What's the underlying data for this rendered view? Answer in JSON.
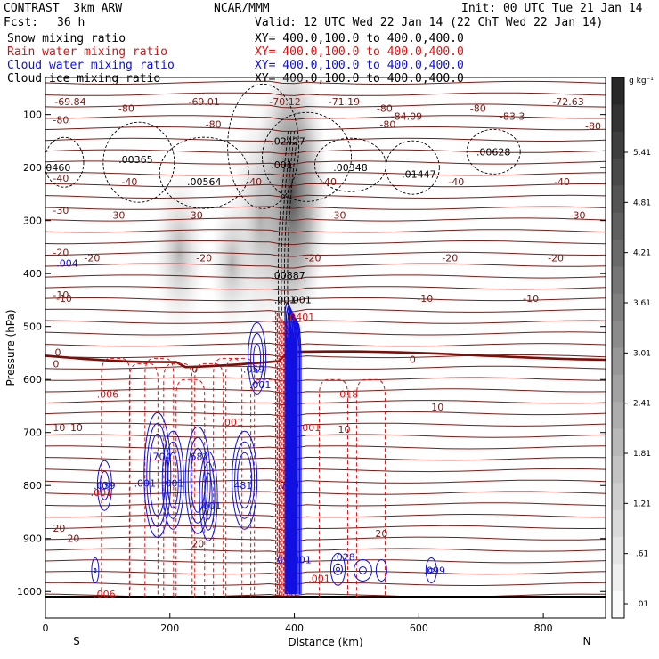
{
  "header": {
    "model": "CONTRAST  3km ARW",
    "center": "NCAR/MMM",
    "init": "Init: 00 UTC Tue 21 Jan 14",
    "fcst_label": "Fcst:",
    "fcst_value": "36 h",
    "valid": "Valid: 12 UTC Wed 22 Jan 14 (22 ChT Wed 22 Jan 14)"
  },
  "fields": [
    {
      "name": "Snow mixing ratio",
      "xy": "XY= 400.0,100.0 to 400.0,400.0",
      "color": "#000000"
    },
    {
      "name": "Rain water mixing ratio",
      "xy": "XY= 400.0,100.0 to 400.0,400.0",
      "color": "#e01010"
    },
    {
      "name": "Cloud water mixing ratio",
      "xy": "XY= 400.0,100.0 to 400.0,400.0",
      "color": "#1010e0"
    },
    {
      "name": "Cloud ice mixing ratio",
      "xy": "XY= 400.0,100.0 to 400.0,400.0",
      "color": "#000000"
    }
  ],
  "chart_data": {
    "type": "cross-section contour",
    "xlabel": "Distance (km)",
    "ylabel": "Pressure (hPa)",
    "xlim": [
      0,
      900
    ],
    "ylim": [
      1050,
      30
    ],
    "x_ticks": [
      "0",
      "200",
      "400",
      "600",
      "800"
    ],
    "y_ticks": [
      "100",
      "200",
      "300",
      "400",
      "500",
      "600",
      "700",
      "800",
      "900",
      "1000"
    ],
    "endpoints": {
      "left": "S",
      "right": "N"
    },
    "colorbar": {
      "unit": "g kg⁻¹",
      "ticks": [
        "5.41",
        "4.81",
        "4.21",
        "3.61",
        "3.01",
        "2.41",
        "1.81",
        "1.21",
        ".61",
        ".01"
      ]
    },
    "temperature_isotherms": [
      {
        "label": "-80",
        "p": 110
      },
      {
        "label": "-40",
        "p": 220
      },
      {
        "label": "-30",
        "p": 280
      },
      {
        "label": "-20",
        "p": 360
      },
      {
        "label": "-10",
        "p": 440
      },
      {
        "label": "0",
        "p": 570
      },
      {
        "label": "10",
        "p": 690
      },
      {
        "label": "20",
        "p": 880
      }
    ],
    "extremes_dark": [
      {
        "text": "-69.84",
        "x": 40,
        "p": 75
      },
      {
        "text": "-69.01",
        "x": 255,
        "p": 75
      },
      {
        "text": "-70.12",
        "x": 385,
        "p": 75
      },
      {
        "text": "-71.19",
        "x": 480,
        "p": 75
      },
      {
        "text": "-72.63",
        "x": 840,
        "p": 75
      },
      {
        "text": "-84.09",
        "x": 580,
        "p": 103
      },
      {
        "text": "-83.3",
        "x": 750,
        "p": 103
      },
      {
        "text": "-80",
        "x": 130,
        "p": 88
      },
      {
        "text": "-80",
        "x": 545,
        "p": 88
      },
      {
        "text": "-80",
        "x": 695,
        "p": 88
      },
      {
        "text": "-80",
        "x": 270,
        "p": 118
      },
      {
        "text": "-80",
        "x": 550,
        "p": 118
      },
      {
        "text": "-80",
        "x": 880,
        "p": 122
      },
      {
        "text": "-40",
        "x": 135,
        "p": 227
      },
      {
        "text": "-40",
        "x": 335,
        "p": 227
      },
      {
        "text": "-40",
        "x": 455,
        "p": 227
      },
      {
        "text": "-40",
        "x": 660,
        "p": 227
      },
      {
        "text": "-40",
        "x": 830,
        "p": 227
      },
      {
        "text": "-30",
        "x": 115,
        "p": 290
      },
      {
        "text": "-30",
        "x": 240,
        "p": 290
      },
      {
        "text": "-30",
        "x": 470,
        "p": 290
      },
      {
        "text": "-30",
        "x": 855,
        "p": 290
      },
      {
        "text": "-20",
        "x": 75,
        "p": 370
      },
      {
        "text": "-20",
        "x": 255,
        "p": 370
      },
      {
        "text": "-20",
        "x": 430,
        "p": 370
      },
      {
        "text": "-20",
        "x": 650,
        "p": 370
      },
      {
        "text": "-20",
        "x": 820,
        "p": 370
      },
      {
        "text": "-10",
        "x": 30,
        "p": 447
      },
      {
        "text": "-10",
        "x": 610,
        "p": 447
      },
      {
        "text": "-10",
        "x": 780,
        "p": 447
      },
      {
        "text": "0",
        "x": 20,
        "p": 548
      },
      {
        "text": "0",
        "x": 240,
        "p": 580
      },
      {
        "text": "0",
        "x": 590,
        "p": 562
      },
      {
        "text": "10",
        "x": 50,
        "p": 690
      },
      {
        "text": "10",
        "x": 480,
        "p": 694
      },
      {
        "text": "10",
        "x": 630,
        "p": 652
      },
      {
        "text": "20",
        "x": 45,
        "p": 900
      },
      {
        "text": "20",
        "x": 245,
        "p": 910
      },
      {
        "text": "20",
        "x": 540,
        "p": 890
      }
    ],
    "snow_ice_labels": [
      {
        "text": ".02427",
        "x": 390,
        "p": 150
      },
      {
        "text": ".00365",
        "x": 145,
        "p": 185
      },
      {
        "text": ".00628",
        "x": 720,
        "p": 170
      },
      {
        "text": ".0460",
        "x": 18,
        "p": 200
      },
      {
        "text": ".001",
        "x": 380,
        "p": 195
      },
      {
        "text": ".00348",
        "x": 490,
        "p": 200
      },
      {
        "text": ".01447",
        "x": 600,
        "p": 212
      },
      {
        "text": ".00564",
        "x": 255,
        "p": 227
      },
      {
        "text": ".00887",
        "x": 390,
        "p": 403
      },
      {
        "text": ".001",
        "x": 385,
        "p": 449
      },
      {
        "text": ".001",
        "x": 410,
        "p": 449
      }
    ],
    "rain_labels": [
      {
        "text": ".006",
        "x": 100,
        "p": 627
      },
      {
        "text": ".018",
        "x": 485,
        "p": 627
      },
      {
        "text": ".001",
        "x": 300,
        "p": 680
      },
      {
        "text": ".001",
        "x": 90,
        "p": 813
      },
      {
        "text": ".001",
        "x": 440,
        "p": 975
      },
      {
        "text": ".006",
        "x": 95,
        "p": 1005
      },
      {
        "text": ".0401",
        "x": 410,
        "p": 482
      },
      {
        "text": ".001",
        "x": 425,
        "p": 690
      }
    ],
    "cloud_water_labels": [
      {
        "text": ".004",
        "x": 35,
        "p": 380
      },
      {
        "text": ".059",
        "x": 335,
        "p": 580
      },
      {
        "text": ".001",
        "x": 345,
        "p": 610
      },
      {
        "text": ".704",
        "x": 185,
        "p": 745
      },
      {
        "text": ".682",
        "x": 245,
        "p": 745
      },
      {
        "text": ".039",
        "x": 95,
        "p": 800
      },
      {
        "text": ".001",
        "x": 160,
        "p": 795
      },
      {
        "text": ".001",
        "x": 205,
        "p": 795
      },
      {
        "text": ".481",
        "x": 315,
        "p": 800
      },
      {
        "text": ".001",
        "x": 265,
        "p": 838
      },
      {
        "text": ".789",
        "x": 390,
        "p": 800
      },
      {
        "text": ".028",
        "x": 480,
        "p": 935
      },
      {
        "text": ".099",
        "x": 625,
        "p": 960
      },
      {
        "text": ".001",
        "x": 385,
        "p": 940
      },
      {
        "text": ".001",
        "x": 410,
        "p": 940
      }
    ]
  }
}
